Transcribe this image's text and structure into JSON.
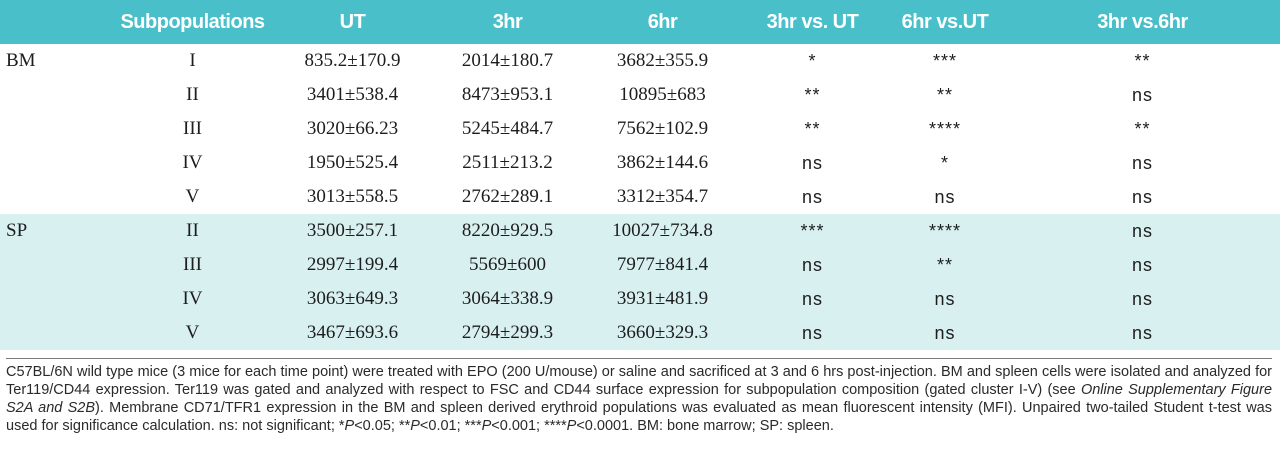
{
  "header": [
    "",
    "Subpopulations",
    "UT",
    "3hr",
    "6hr",
    "3hr vs. UT",
    "6hr vs.UT",
    "3hr vs.6hr"
  ],
  "groups": [
    {
      "label": "BM",
      "shaded": false,
      "rows": [
        {
          "sub": "I",
          "ut": "835.2±170.9",
          "h3": "2014±180.7",
          "h6": "3682±355.9",
          "v3ut": "*",
          "v6ut": "***",
          "v36": "**"
        },
        {
          "sub": "II",
          "ut": "3401±538.4",
          "h3": "8473±953.1",
          "h6": "10895±683",
          "v3ut": "**",
          "v6ut": "**",
          "v36": "ns"
        },
        {
          "sub": "III",
          "ut": "3020±66.23",
          "h3": "5245±484.7",
          "h6": "7562±102.9",
          "v3ut": "**",
          "v6ut": "****",
          "v36": "**"
        },
        {
          "sub": "IV",
          "ut": "1950±525.4",
          "h3": "2511±213.2",
          "h6": "3862±144.6",
          "v3ut": "ns",
          "v6ut": "*",
          "v36": "ns"
        },
        {
          "sub": "V",
          "ut": "3013±558.5",
          "h3": "2762±289.1",
          "h6": "3312±354.7",
          "v3ut": "ns",
          "v6ut": "ns",
          "v36": "ns"
        }
      ]
    },
    {
      "label": "SP",
      "shaded": true,
      "rows": [
        {
          "sub": "II",
          "ut": "3500±257.1",
          "h3": "8220±929.5",
          "h6": "10027±734.8",
          "v3ut": "***",
          "v6ut": "****",
          "v36": "ns"
        },
        {
          "sub": "III",
          "ut": "2997±199.4",
          "h3": "5569±600",
          "h6": "7977±841.4",
          "v3ut": "ns",
          "v6ut": "**",
          "v36": "ns"
        },
        {
          "sub": "IV",
          "ut": "3063±649.3",
          "h3": "3064±338.9",
          "h6": "3931±481.9",
          "v3ut": "ns",
          "v6ut": "ns",
          "v36": "ns"
        },
        {
          "sub": "V",
          "ut": "3467±693.6",
          "h3": "2794±299.3",
          "h6": "3660±329.3",
          "v3ut": "ns",
          "v6ut": "ns",
          "v36": "ns"
        }
      ]
    }
  ],
  "footnote": [
    {
      "t": "C57BL/6N wild type mice (3 mice for each time point) were treated with EPO (200 U/mouse) or saline and sacrificed at 3 and 6 hrs post-injection. BM and spleen cells were isolated and analyzed for Ter119/CD44 expression. Ter119 was gated and analyzed with respect to FSC and CD44 surface expression for subpopulation composition (gated cluster I-V) (see "
    },
    {
      "t": "Online Supplementary Figure S2A and S2B",
      "i": true
    },
    {
      "t": "). Membrane CD71/TFR1 expression in the BM and spleen derived erythroid populations was evaluated as mean fluorescent intensity (MFI). Unpaired two-tailed Student t-test was used for significance calculation. ns: not significant; *"
    },
    {
      "t": "P",
      "i": true
    },
    {
      "t": "<0.05; **"
    },
    {
      "t": "P",
      "i": true
    },
    {
      "t": "<0.01; ***"
    },
    {
      "t": "P",
      "i": true
    },
    {
      "t": "<0.001; ****"
    },
    {
      "t": "P",
      "i": true
    },
    {
      "t": "<0.0001. BM: bone marrow; SP: spleen."
    }
  ]
}
